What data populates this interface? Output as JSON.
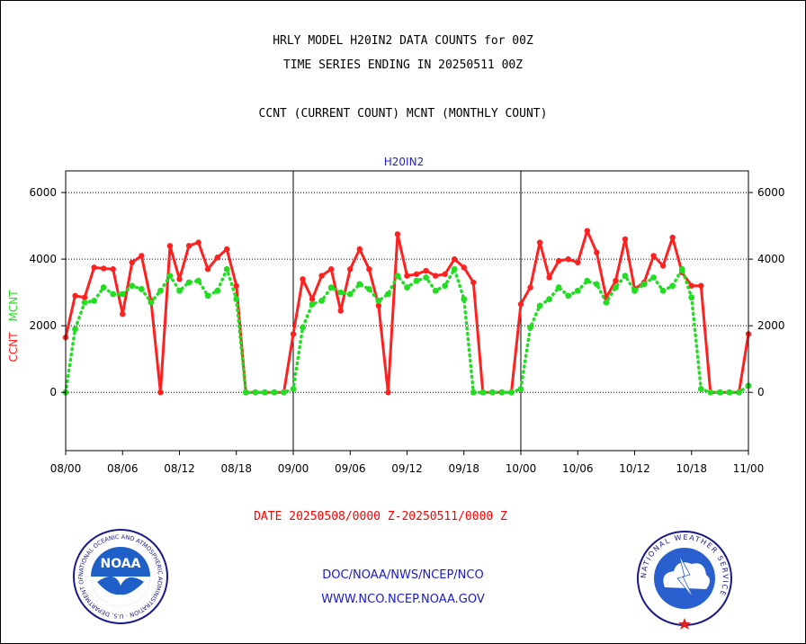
{
  "header": {
    "line1": "HRLY MODEL H20IN2 DATA COUNTS for 00Z",
    "line2": "TIME SERIES ENDING IN 20250511 00Z",
    "line3": "CCNT (CURRENT COUNT) MCNT (MONTHLY COUNT)"
  },
  "chart_data": {
    "type": "line",
    "title": "H20IN2",
    "ylabel_left_ccnt": "CCNT",
    "ylabel_left_mcnt": "MCNT",
    "xlabel": "DATE 20250508/0000 Z-20250511/0000 Z",
    "x_tick_labels": [
      "08/00",
      "08/06",
      "08/12",
      "08/18",
      "09/00",
      "09/06",
      "09/12",
      "09/18",
      "10/00",
      "10/06",
      "10/12",
      "10/18",
      "11/00"
    ],
    "y_tick_labels": [
      "0",
      "2000",
      "4000",
      "6000"
    ],
    "y_ticks": [
      0,
      2000,
      4000,
      6000
    ],
    "ylim": [
      -1750,
      6650
    ],
    "x_range_hours": [
      0,
      72
    ],
    "grid": "horizontal dotted at 2000 intervals, vertical solid at day boundaries",
    "colors": {
      "CCNT": "#ff2020",
      "MCNT": "#22dd22",
      "title": "#2222cc",
      "xlabel": "#ff0000"
    },
    "series": [
      {
        "name": "CCNT",
        "style": "solid",
        "values": [
          1650,
          2900,
          2850,
          3750,
          3720,
          3700,
          2350,
          3900,
          4100,
          2750,
          0,
          4400,
          3400,
          4400,
          4500,
          3700,
          4050,
          4300,
          3200,
          0,
          0,
          0,
          0,
          0,
          1750,
          3400,
          2800,
          3500,
          3700,
          2450,
          3700,
          4300,
          3700,
          2600,
          0,
          4750,
          3500,
          3550,
          3650,
          3500,
          3550,
          4000,
          3750,
          3300,
          0,
          0,
          0,
          0,
          2650,
          3150,
          4500,
          3450,
          3950,
          4000,
          3900,
          4850,
          4200,
          2850,
          3350,
          4600,
          3100,
          3300,
          4100,
          3800,
          4650,
          3600,
          3200,
          3200,
          0,
          0,
          0,
          0,
          1750
        ]
      },
      {
        "name": "MCNT",
        "style": "dotted",
        "values": [
          0,
          1900,
          2700,
          2750,
          3150,
          2950,
          2950,
          3200,
          3100,
          2700,
          3050,
          3500,
          3050,
          3300,
          3350,
          2900,
          3050,
          3700,
          2800,
          0,
          0,
          0,
          0,
          0,
          100,
          1950,
          2650,
          2750,
          3150,
          3000,
          2950,
          3250,
          3100,
          2750,
          2950,
          3500,
          3150,
          3350,
          3450,
          3050,
          3200,
          3700,
          2800,
          0,
          0,
          0,
          0,
          0,
          100,
          1950,
          2600,
          2800,
          3150,
          2900,
          3050,
          3350,
          3250,
          2700,
          3150,
          3500,
          3050,
          3250,
          3450,
          3050,
          3200,
          3700,
          2850,
          100,
          0,
          0,
          0,
          0,
          200
        ]
      }
    ]
  },
  "footer": {
    "org_path": "DOC/NOAA/NWS/NCEP/NCO",
    "website": "WWW.NCO.NCEP.NOAA.GOV",
    "noaa_logo_text": "NOAA",
    "noaa_ring_text": "NATIONAL OCEANIC AND ATMOSPHERIC ADMINISTRATION · U.S. DEPARTMENT OF COMMERCE",
    "nws_ring_text": "NATIONAL WEATHER SERVICE"
  }
}
